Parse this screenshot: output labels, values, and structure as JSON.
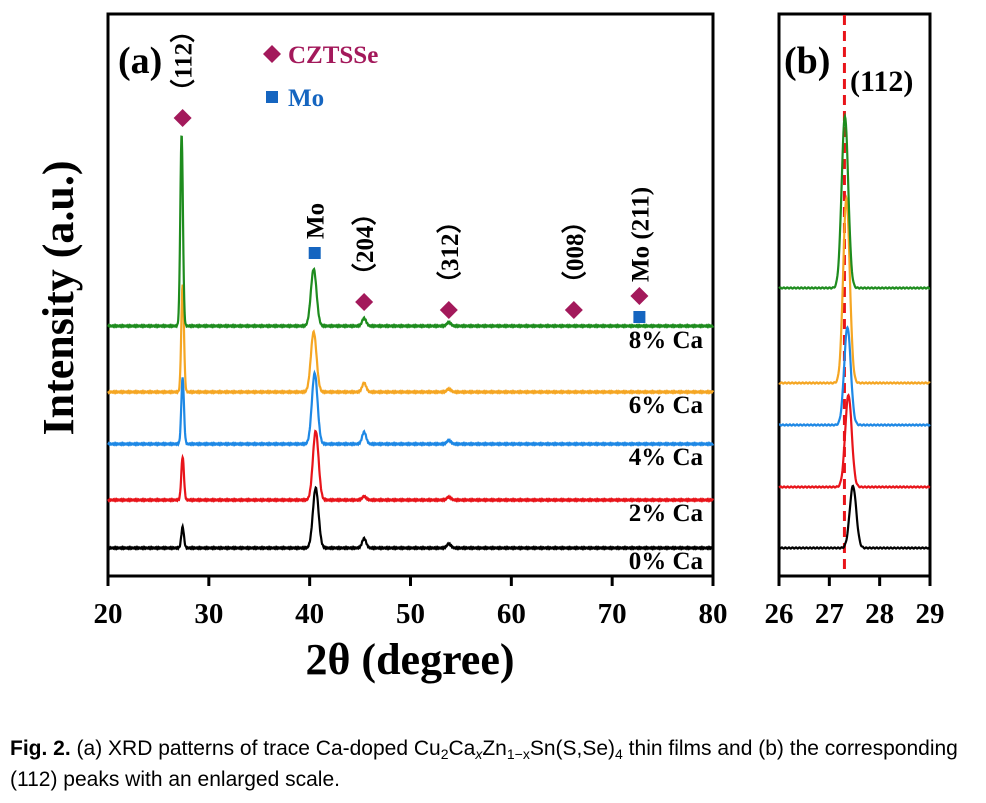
{
  "chart_data": [
    {
      "type": "line",
      "panel_label": "(a)",
      "xlabel": "2θ (degree)",
      "ylabel": "Intensity (a.u.)",
      "xlim": [
        20,
        80
      ],
      "xticks": [
        20,
        30,
        40,
        50,
        60,
        70,
        80
      ],
      "grid": false,
      "legend": [
        {
          "marker": "diamond",
          "label": "CZTSSe",
          "color": "#A3195B"
        },
        {
          "marker": "square",
          "label": "Mo",
          "color": "#1565C0"
        }
      ],
      "series": [
        {
          "name": "0% Ca",
          "color": "#000000",
          "peaks": [
            {
              "x": 27.4,
              "h": 0.35
            },
            {
              "x": 40.6,
              "h": 1.0
            },
            {
              "x": 45.4,
              "h": 0.16
            },
            {
              "x": 53.8,
              "h": 0.07
            }
          ]
        },
        {
          "name": "2% Ca",
          "color": "#E8141A",
          "peaks": [
            {
              "x": 27.4,
              "h": 0.72
            },
            {
              "x": 40.6,
              "h": 1.15
            },
            {
              "x": 45.4,
              "h": 0.06
            },
            {
              "x": 53.8,
              "h": 0.05
            }
          ]
        },
        {
          "name": "4% Ca",
          "color": "#1E88E5",
          "peaks": [
            {
              "x": 27.4,
              "h": 1.1
            },
            {
              "x": 40.5,
              "h": 1.18
            },
            {
              "x": 45.4,
              "h": 0.2
            },
            {
              "x": 53.8,
              "h": 0.06
            }
          ]
        },
        {
          "name": "6% Ca",
          "color": "#F5A623",
          "peaks": [
            {
              "x": 27.4,
              "h": 1.8
            },
            {
              "x": 40.4,
              "h": 1.0
            },
            {
              "x": 45.4,
              "h": 0.15
            },
            {
              "x": 53.8,
              "h": 0.05
            }
          ]
        },
        {
          "name": "8% Ca",
          "color": "#1E8C1E",
          "peaks": [
            {
              "x": 27.3,
              "h": 3.2
            },
            {
              "x": 40.4,
              "h": 0.95
            },
            {
              "x": 45.4,
              "h": 0.13
            },
            {
              "x": 53.8,
              "h": 0.06
            }
          ]
        }
      ],
      "annotations": [
        {
          "text": "（112）",
          "x": 27.4,
          "marker": "diamond"
        },
        {
          "text": "Mo",
          "x": 40.5,
          "marker": "square"
        },
        {
          "text": "（204）",
          "x": 45.4,
          "marker": "diamond"
        },
        {
          "text": "（312）",
          "x": 53.8,
          "marker": "diamond"
        },
        {
          "text": "（008）",
          "x": 66.2,
          "marker": "diamond"
        },
        {
          "text": "Mo (211)",
          "x": 72.7,
          "marker": "diamond+square"
        }
      ]
    },
    {
      "type": "line",
      "panel_label": "(b)",
      "xlim": [
        26,
        29
      ],
      "xticks": [
        26,
        27,
        28,
        29
      ],
      "reference_line": {
        "x": 27.3,
        "label": "(112)",
        "color": "#E8141A",
        "style": "dashed"
      },
      "series": [
        {
          "name": "0% Ca",
          "color": "#000000",
          "peak_x": 27.47,
          "h": 0.62
        },
        {
          "name": "2% Ca",
          "color": "#E8141A",
          "peak_x": 27.38,
          "h": 0.92
        },
        {
          "name": "4% Ca",
          "color": "#1E88E5",
          "peak_x": 27.36,
          "h": 0.98
        },
        {
          "name": "6% Ca",
          "color": "#F5A623",
          "peak_x": 27.34,
          "h": 1.85
        },
        {
          "name": "8% Ca",
          "color": "#1E8C1E",
          "peak_x": 27.31,
          "h": 1.72
        }
      ]
    }
  ],
  "caption": {
    "label": "Fig. 2.",
    "part1": " (a) XRD patterns of trace Ca-doped Cu",
    "sub1": "2",
    "part2": "Ca",
    "sub2": "x",
    "part3": "Zn",
    "sub3": "1−x",
    "part4": "Sn(S,Se)",
    "sub4": "4",
    "part5": " thin films and (b) the corresponding (112) peaks with an enlarged scale."
  }
}
